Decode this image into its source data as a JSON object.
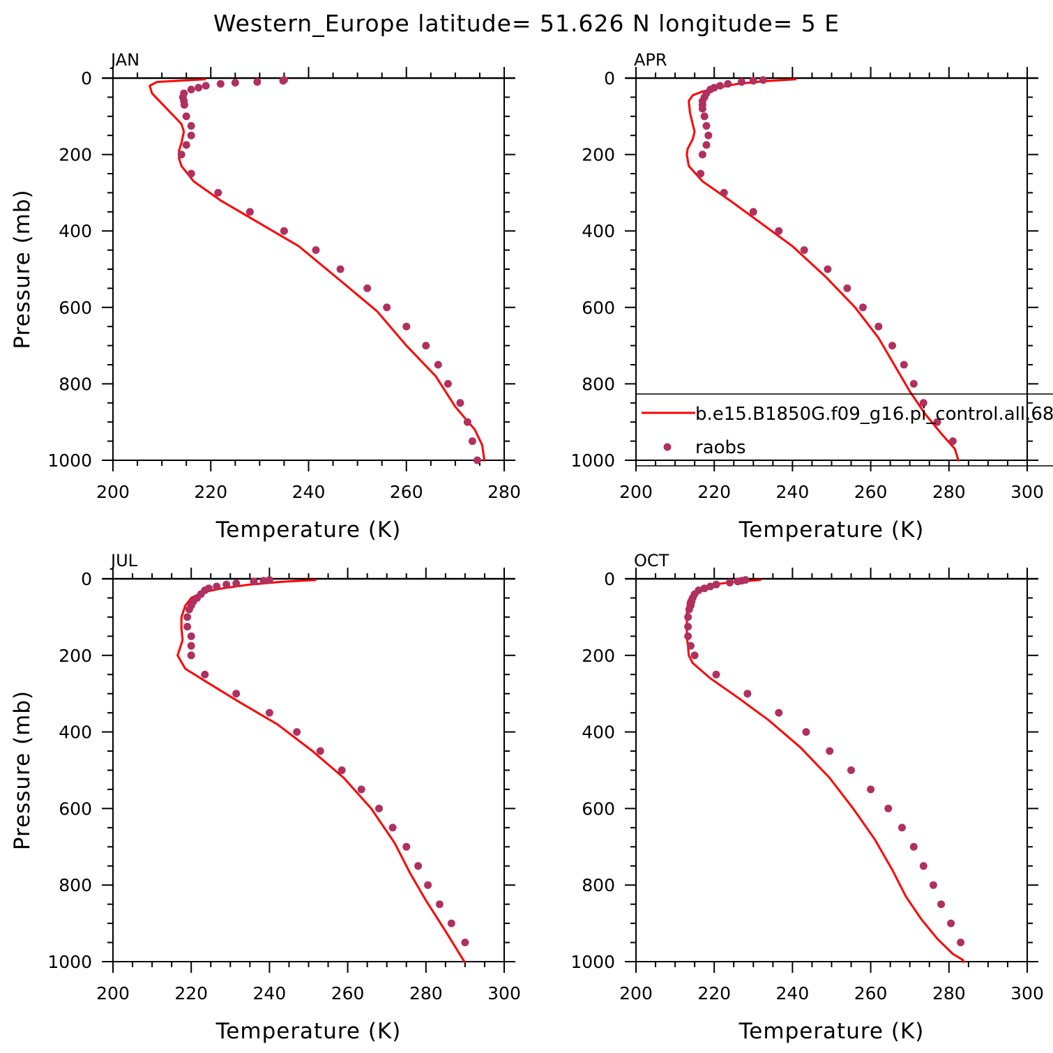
{
  "title": "Western_Europe  latitude= 51.626 N longitude= 5 E",
  "colors": {
    "model_line": "#ff0000",
    "obs_points": "#b03060",
    "axes": "#000000"
  },
  "legend": {
    "model_label": "b.e15.B1850G.f09_g16.pi_control.all.68",
    "obs_label": "raobs"
  },
  "chart_data": [
    {
      "type": "line",
      "panel": "JAN",
      "xlabel": "Temperature (K)",
      "ylabel": "Pressure (mb)",
      "xlim": [
        200,
        280
      ],
      "ylim": [
        1000,
        0
      ],
      "xticks": [
        200,
        220,
        240,
        260,
        280
      ],
      "yticks": [
        0,
        200,
        400,
        600,
        800,
        1000
      ],
      "series": [
        {
          "name": "b.e15.B1850G.f09_g16.pi_control.all.68",
          "x": [
            219,
            209,
            207.5,
            208,
            211,
            214,
            214.5,
            214,
            213.5,
            213.5,
            214,
            216.5,
            222,
            230,
            238,
            246.5,
            254,
            260,
            266,
            270,
            274,
            275.5,
            276
          ],
          "y": [
            3,
            10,
            20,
            40,
            80,
            120,
            140,
            170,
            190,
            210,
            230,
            270,
            320,
            380,
            440,
            530,
            610,
            700,
            780,
            860,
            920,
            960,
            1003
          ]
        },
        {
          "name": "raobs",
          "x": [
            235,
            234.8,
            229.5,
            225,
            222,
            219,
            217.5,
            216,
            214.5,
            214.3,
            214.5,
            214.6,
            215,
            216,
            216,
            215,
            214,
            216,
            221.5,
            228,
            235,
            241.5,
            246.5,
            252,
            256,
            260,
            264,
            266.5,
            268.5,
            271,
            272.5,
            273.5,
            274.5
          ],
          "y": [
            5,
            7,
            10,
            12,
            15,
            20,
            25,
            30,
            40,
            50,
            60,
            70,
            100,
            125,
            150,
            175,
            200,
            250,
            300,
            350,
            400,
            450,
            500,
            550,
            600,
            650,
            700,
            750,
            800,
            850,
            900,
            950,
            1000
          ]
        }
      ]
    },
    {
      "type": "line",
      "panel": "APR",
      "xlabel": "Temperature (K)",
      "ylabel": "",
      "xlim": [
        200,
        300
      ],
      "ylim": [
        1000,
        0
      ],
      "xticks": [
        200,
        220,
        240,
        260,
        280,
        300
      ],
      "yticks": [
        0,
        200,
        400,
        600,
        800,
        1000
      ],
      "series": [
        {
          "name": "b.e15.B1850G.f09_g16.pi_control.all.68",
          "x": [
            241,
            233,
            226,
            221,
            217,
            214.5,
            213.5,
            213.8,
            214.5,
            215,
            214.5,
            213.2,
            213,
            213.5,
            217,
            224,
            232,
            240,
            248.5,
            256,
            262,
            266,
            270,
            274,
            278,
            281.5,
            282.5
          ],
          "y": [
            3,
            8,
            15,
            25,
            35,
            45,
            60,
            90,
            120,
            140,
            160,
            185,
            200,
            230,
            270,
            320,
            380,
            440,
            520,
            600,
            680,
            750,
            820,
            880,
            930,
            970,
            1003
          ]
        },
        {
          "name": "raobs",
          "x": [
            232.5,
            230,
            227,
            223.5,
            221.5,
            220,
            219,
            218,
            217.5,
            217,
            217,
            217,
            217.5,
            218,
            218.5,
            218,
            217,
            216.5,
            222.5,
            230,
            236.5,
            243,
            249,
            254,
            258,
            262,
            265.5,
            268.5,
            271,
            273.5,
            277,
            281
          ],
          "y": [
            5,
            7,
            10,
            15,
            20,
            25,
            30,
            40,
            50,
            60,
            70,
            80,
            100,
            125,
            150,
            175,
            200,
            250,
            300,
            350,
            400,
            450,
            500,
            550,
            600,
            650,
            700,
            750,
            800,
            850,
            900,
            950
          ]
        }
      ]
    },
    {
      "type": "line",
      "panel": "JUL",
      "xlabel": "Temperature (K)",
      "ylabel": "Pressure (mb)",
      "xlim": [
        200,
        300
      ],
      "ylim": [
        1000,
        0
      ],
      "xticks": [
        200,
        220,
        240,
        260,
        280,
        300
      ],
      "yticks": [
        0,
        200,
        400,
        600,
        800,
        1000
      ],
      "series": [
        {
          "name": "b.e15.B1850G.f09_g16.pi_control.all.68",
          "x": [
            252,
            243,
            235,
            228,
            223,
            220,
            218.5,
            217.5,
            217.5,
            217.8,
            217,
            216.5,
            218.5,
            224,
            232,
            242,
            251,
            259,
            266,
            272,
            276,
            280,
            285,
            290
          ],
          "y": [
            3,
            8,
            15,
            25,
            35,
            50,
            70,
            100,
            130,
            160,
            185,
            200,
            235,
            270,
            320,
            380,
            450,
            520,
            600,
            690,
            770,
            840,
            920,
            1003
          ]
        },
        {
          "name": "raobs",
          "x": [
            240,
            238.5,
            236,
            231.5,
            229,
            226.5,
            224.5,
            223.5,
            222.5,
            221.5,
            220.5,
            220,
            219.5,
            219,
            219,
            220,
            220,
            220,
            223.5,
            231.5,
            240,
            247,
            253,
            258.5,
            263.5,
            268,
            271.5,
            275,
            278,
            280.5,
            283.5,
            286.5,
            290
          ],
          "y": [
            3,
            5,
            7,
            12,
            15,
            20,
            25,
            30,
            40,
            50,
            60,
            70,
            80,
            100,
            125,
            150,
            175,
            200,
            250,
            300,
            350,
            400,
            450,
            500,
            550,
            600,
            650,
            700,
            750,
            800,
            850,
            900,
            950
          ]
        }
      ]
    },
    {
      "type": "line",
      "panel": "OCT",
      "xlabel": "Temperature (K)",
      "ylabel": "",
      "xlim": [
        200,
        300
      ],
      "ylim": [
        1000,
        0
      ],
      "xticks": [
        200,
        220,
        240,
        260,
        280,
        300
      ],
      "yticks": [
        0,
        200,
        400,
        600,
        800,
        1000
      ],
      "series": [
        {
          "name": "b.e15.B1850G.f09_g16.pi_control.all.68",
          "x": [
            232,
            225,
            220,
            217,
            215,
            214,
            213.3,
            213,
            213,
            213,
            213.3,
            213.5,
            214.5,
            219,
            226,
            234,
            242,
            249.5,
            255.5,
            261,
            265.5,
            269,
            273,
            277,
            281,
            283.5,
            284
          ],
          "y": [
            3,
            8,
            15,
            25,
            35,
            45,
            60,
            90,
            120,
            150,
            175,
            200,
            220,
            260,
            310,
            370,
            440,
            520,
            600,
            680,
            760,
            830,
            890,
            940,
            980,
            995,
            1003
          ]
        },
        {
          "name": "raobs",
          "x": [
            228,
            227,
            226,
            224,
            220.5,
            219,
            217.5,
            216,
            215,
            214.5,
            214.2,
            214,
            213.6,
            213.3,
            213.3,
            213.3,
            214,
            215,
            220.5,
            228.5,
            236.5,
            243.5,
            249.5,
            255,
            260,
            264.5,
            268,
            271,
            273.5,
            276,
            278,
            280.5,
            283
          ],
          "y": [
            3,
            5,
            7,
            10,
            15,
            20,
            25,
            30,
            40,
            50,
            60,
            70,
            80,
            100,
            125,
            150,
            175,
            200,
            250,
            300,
            350,
            400,
            450,
            500,
            550,
            600,
            650,
            700,
            750,
            800,
            850,
            900,
            950
          ]
        }
      ]
    }
  ]
}
